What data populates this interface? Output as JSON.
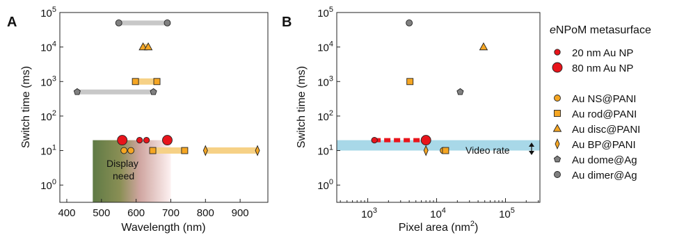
{
  "chart_data": [
    {
      "panel_label": "A",
      "type": "scatter",
      "xlabel": "Wavelength (nm)",
      "ylabel": "Switch time (ms)",
      "xlim": [
        380,
        980
      ],
      "ylim_log10": [
        -0.5,
        5
      ],
      "x_ticks": [
        "400",
        "500",
        "600",
        "700",
        "800",
        "900"
      ],
      "y_ticks": [
        "10^0",
        "10^1",
        "10^2",
        "10^3",
        "10^4",
        "10^5"
      ],
      "y_scale": "log",
      "display_region": {
        "label_line1": "Display",
        "label_line2": "need",
        "x_range": [
          475,
          700
        ],
        "y_max": 20
      },
      "ranges": [
        {
          "series": "Au dimer@Ag",
          "x": [
            550,
            690
          ],
          "y": 50000
        },
        {
          "series": "Au disc@PANI",
          "x": [
            620,
            635
          ],
          "y": 10000
        },
        {
          "series": "Au rod@PANI",
          "x": [
            598,
            660
          ],
          "y": 1000
        },
        {
          "series": "Au dome@Ag",
          "x": [
            430,
            650
          ],
          "y": 500
        },
        {
          "series": "eNPoM",
          "x": [
            560,
            690
          ],
          "y": 20
        },
        {
          "series": "Au rod@PANI",
          "x": [
            648,
            740
          ],
          "y": 10
        },
        {
          "series": "Au BP@PANI",
          "x": [
            800,
            950
          ],
          "y": 10
        }
      ],
      "points": [
        {
          "series": "Au dimer@Ag",
          "x": 550,
          "y": 50000
        },
        {
          "series": "Au dimer@Ag",
          "x": 690,
          "y": 50000
        },
        {
          "series": "Au disc@PANI",
          "x": 620,
          "y": 10000
        },
        {
          "series": "Au disc@PANI",
          "x": 635,
          "y": 10000
        },
        {
          "series": "Au rod@PANI",
          "x": 598,
          "y": 1000
        },
        {
          "series": "Au rod@PANI",
          "x": 660,
          "y": 1000
        },
        {
          "series": "Au dome@Ag",
          "x": 430,
          "y": 500
        },
        {
          "series": "Au dome@Ag",
          "x": 650,
          "y": 500
        },
        {
          "series": "20 nm Au NP",
          "x": 610,
          "y": 20
        },
        {
          "series": "20 nm Au NP",
          "x": 630,
          "y": 20
        },
        {
          "series": "80 nm Au NP",
          "x": 560,
          "y": 20
        },
        {
          "series": "80 nm Au NP",
          "x": 690,
          "y": 20
        },
        {
          "series": "Au NS@PANI",
          "x": 565,
          "y": 10
        },
        {
          "series": "Au NS@PANI",
          "x": 585,
          "y": 10
        },
        {
          "series": "Au rod@PANI",
          "x": 648,
          "y": 10
        },
        {
          "series": "Au rod@PANI",
          "x": 740,
          "y": 10
        },
        {
          "series": "Au BP@PANI",
          "x": 800,
          "y": 10
        },
        {
          "series": "Au BP@PANI",
          "x": 950,
          "y": 10
        }
      ]
    },
    {
      "panel_label": "B",
      "type": "scatter",
      "xlabel": "Pixel area (nm²)",
      "ylabel": "Switch time (ms)",
      "x_scale": "log",
      "y_scale": "log",
      "xlim_log10": [
        2.55,
        5.5
      ],
      "ylim_log10": [
        -0.5,
        5
      ],
      "x_ticks": [
        "10^3",
        "10^4",
        "10^5"
      ],
      "y_ticks": [
        "10^0",
        "10^1",
        "10^2",
        "10^3",
        "10^4",
        "10^5"
      ],
      "band": {
        "label": "Video rate",
        "y_range": [
          10,
          20
        ]
      },
      "ranges": [
        {
          "series": "eNPoM",
          "x": [
            1250,
            7000
          ],
          "y": 20
        }
      ],
      "points": [
        {
          "series": "Au dimer@Ag",
          "x": 4000,
          "y": 50000
        },
        {
          "series": "Au disc@PANI",
          "x": 48000,
          "y": 10000
        },
        {
          "series": "Au rod@PANI",
          "x": 4100,
          "y": 1000
        },
        {
          "series": "Au dome@Ag",
          "x": 22000,
          "y": 500
        },
        {
          "series": "20 nm Au NP",
          "x": 1250,
          "y": 20
        },
        {
          "series": "80 nm Au NP",
          "x": 7000,
          "y": 20
        },
        {
          "series": "Au BP@PANI",
          "x": 7000,
          "y": 10
        },
        {
          "series": "Au NS@PANI",
          "x": 12500,
          "y": 10
        },
        {
          "series": "Au rod@PANI",
          "x": 13500,
          "y": 10
        }
      ]
    }
  ],
  "legend": {
    "title_prefix": "e",
    "title_rest": "NPoM metasurface",
    "items": [
      {
        "label": "20 nm Au NP",
        "marker": "circle-small",
        "color": "#e8141b"
      },
      {
        "label": "80 nm Au NP",
        "marker": "circle-large",
        "color": "#e8141b"
      },
      {
        "label": "Au NS@PANI",
        "marker": "circle",
        "color": "#f5a623"
      },
      {
        "label": "Au rod@PANI",
        "marker": "square",
        "color": "#f5a623"
      },
      {
        "label": "Au disc@PANI",
        "marker": "triangle",
        "color": "#f5a623"
      },
      {
        "label": "Au BP@PANI",
        "marker": "diamond",
        "color": "#f5a623"
      },
      {
        "label": "Au dome@Ag",
        "marker": "pentagon",
        "color": "#808080"
      },
      {
        "label": "Au dimer@Ag",
        "marker": "circle",
        "color": "#808080"
      }
    ]
  },
  "colors": {
    "red": "#e8141b",
    "orange": "#f5a623",
    "gray": "#808080",
    "video_band": "#a8d8e8",
    "display_green": "#5a7a3a"
  }
}
